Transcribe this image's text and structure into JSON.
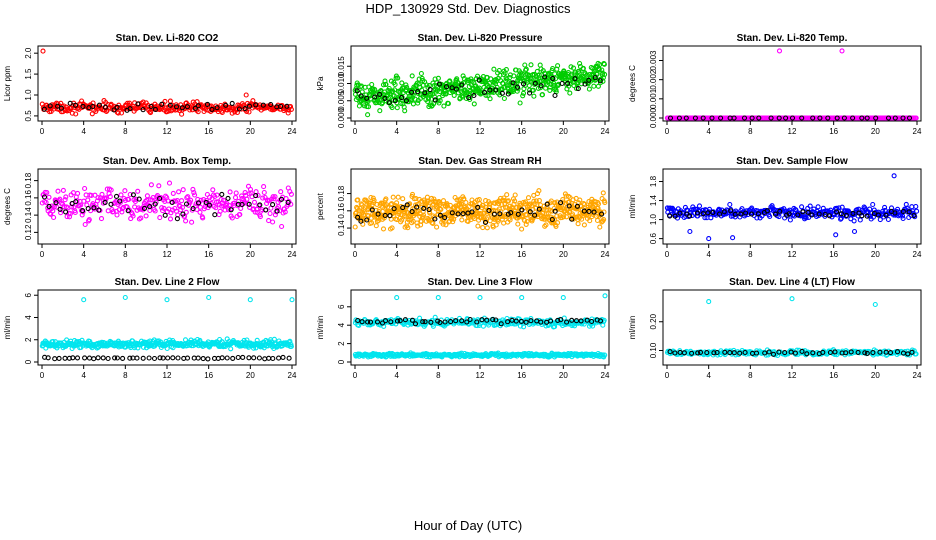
{
  "figure": {
    "title": "HDP_130929  Std. Dev. Diagnostics",
    "xlabel": "Hour of Day (UTC)"
  },
  "chart_data": [
    {
      "type": "scatter",
      "title": "Stan. Dev. Li-820 CO2",
      "ylabel": "Licor ppm",
      "xlim": [
        0,
        24
      ],
      "ylim": [
        0.45,
        2.1
      ],
      "xticks": [
        "0",
        "4",
        "8",
        "12",
        "16",
        "20",
        "24"
      ],
      "yticks": [
        {
          "v": 0.5,
          "label": "0.5"
        },
        {
          "v": 1.0,
          "label": "1.0"
        },
        {
          "v": 1.5,
          "label": "1.5"
        },
        {
          "v": 2.0,
          "label": "2.0"
        }
      ],
      "series": [
        {
          "color": "#ff0000",
          "pattern": {
            "n": 300,
            "base": 0.7,
            "spread": 0.18
          },
          "outliers": [
            {
              "x": 0.1,
              "y": 2.05
            },
            {
              "x": 19.6,
              "y": 1.0
            }
          ]
        },
        {
          "color": "#000000",
          "pattern": {
            "n": 40,
            "base": 0.72,
            "spread": 0.12
          }
        }
      ]
    },
    {
      "type": "scatter",
      "title": "Stan. Dev. Li-820 Pressure",
      "ylabel": "kPa",
      "xlim": [
        0,
        24
      ],
      "ylim": [
        0.0,
        0.02
      ],
      "xticks": [
        "0",
        "4",
        "8",
        "12",
        "16",
        "20",
        "24"
      ],
      "yticks": [
        {
          "v": 0.0,
          "label": "0.000"
        },
        {
          "v": 0.005,
          "label": "0.005"
        },
        {
          "v": 0.01,
          "label": "0.010"
        },
        {
          "v": 0.015,
          "label": "0.015"
        }
      ],
      "series": [
        {
          "color": "#00cc00",
          "pattern": {
            "n": 600,
            "base": 0.006,
            "spread": 0.006,
            "trend": 0.00026
          }
        },
        {
          "color": "#000000",
          "pattern": {
            "n": 45,
            "base": 0.005,
            "spread": 0.004,
            "trend": 0.00025
          }
        }
      ]
    },
    {
      "type": "scatter",
      "title": "Stan. Dev. Li-820 Temp.",
      "ylabel": "degrees C",
      "xlim": [
        0,
        24
      ],
      "ylim": [
        0.0,
        0.0036
      ],
      "xticks": [
        "0",
        "4",
        "8",
        "12",
        "16",
        "20",
        "24"
      ],
      "yticks": [
        {
          "v": 0.0,
          "label": "0.000"
        },
        {
          "v": 0.001,
          "label": "0.001"
        },
        {
          "v": 0.002,
          "label": "0.002"
        },
        {
          "v": 0.003,
          "label": "0.003"
        }
      ],
      "series": [
        {
          "color": "#ff00ff",
          "pattern": {
            "n": 240,
            "base": 0.0,
            "spread": 0.0
          },
          "outliers": [
            {
              "x": 10.8,
              "y": 0.0035
            },
            {
              "x": 16.8,
              "y": 0.0035
            }
          ]
        },
        {
          "color": "#000000",
          "pattern": {
            "n": 30,
            "base": 0.0,
            "spread": 0.0
          }
        }
      ]
    },
    {
      "type": "scatter",
      "title": "Stan. Dev. Amb. Box Temp.",
      "ylabel": "degrees C",
      "xlim": [
        0,
        24
      ],
      "ylim": [
        0.11,
        0.19
      ],
      "xticks": [
        "0",
        "4",
        "8",
        "12",
        "16",
        "20",
        "24"
      ],
      "yticks": [
        {
          "v": 0.12,
          "label": "0.12"
        },
        {
          "v": 0.14,
          "label": "0.14"
        },
        {
          "v": 0.16,
          "label": "0.16"
        },
        {
          "v": 0.18,
          "label": "0.18"
        }
      ],
      "series": [
        {
          "color": "#ff00ff",
          "pattern": {
            "n": 330,
            "base": 0.152,
            "spread": 0.028
          }
        },
        {
          "color": "#000000",
          "pattern": {
            "n": 45,
            "base": 0.152,
            "spread": 0.02
          }
        }
      ]
    },
    {
      "type": "scatter",
      "title": "Stan. Dev. Gas Stream RH",
      "ylabel": "percent",
      "xlim": [
        0,
        24
      ],
      "ylim": [
        0.125,
        0.205
      ],
      "xticks": [
        "0",
        "4",
        "8",
        "12",
        "16",
        "20",
        "24"
      ],
      "yticks": [
        {
          "v": 0.14,
          "label": "0.14"
        },
        {
          "v": 0.16,
          "label": "0.16"
        },
        {
          "v": 0.18,
          "label": "0.18"
        }
      ],
      "series": [
        {
          "color": "#ffa500",
          "pattern": {
            "n": 650,
            "base": 0.16,
            "spread": 0.026
          }
        },
        {
          "color": "#000000",
          "pattern": {
            "n": 45,
            "base": 0.158,
            "spread": 0.016
          }
        }
      ]
    },
    {
      "type": "scatter",
      "title": "Stan. Dev. Sample Flow",
      "ylabel": "ml/min",
      "xlim": [
        0,
        24
      ],
      "ylim": [
        0.55,
        2.0
      ],
      "xticks": [
        "0",
        "4",
        "8",
        "12",
        "16",
        "20",
        "24"
      ],
      "yticks": [
        {
          "v": 0.6,
          "label": "0.6"
        },
        {
          "v": 1.0,
          "label": "1.0"
        },
        {
          "v": 1.4,
          "label": "1.4"
        },
        {
          "v": 1.8,
          "label": "1.8"
        }
      ],
      "series": [
        {
          "color": "#0000ff",
          "pattern": {
            "n": 320,
            "base": 1.15,
            "spread": 0.2
          },
          "outliers": [
            {
              "x": 4.0,
              "y": 0.6
            },
            {
              "x": 6.3,
              "y": 0.62
            },
            {
              "x": 16.2,
              "y": 0.68
            },
            {
              "x": 21.8,
              "y": 1.92
            },
            {
              "x": 2.2,
              "y": 0.75
            },
            {
              "x": 18.0,
              "y": 0.75
            }
          ]
        },
        {
          "color": "#000000",
          "pattern": {
            "n": 45,
            "base": 1.12,
            "spread": 0.1
          }
        }
      ]
    },
    {
      "type": "scatter",
      "title": "Stan. Dev. Line 2 Flow",
      "ylabel": "ml/min",
      "xlim": [
        0,
        24
      ],
      "ylim": [
        0.0,
        6.2
      ],
      "xticks": [
        "0",
        "4",
        "8",
        "12",
        "16",
        "20",
        "24"
      ],
      "yticks": [
        {
          "v": 0,
          "label": "0"
        },
        {
          "v": 2,
          "label": "2"
        },
        {
          "v": 4,
          "label": "4"
        },
        {
          "v": 6,
          "label": "6"
        }
      ],
      "series": [
        {
          "color": "#00e5ee",
          "pattern": {
            "n": 420,
            "base": 1.6,
            "spread": 0.5
          },
          "outliers": [
            {
              "x": 4.0,
              "y": 5.6
            },
            {
              "x": 8.0,
              "y": 5.8
            },
            {
              "x": 12.0,
              "y": 5.6
            },
            {
              "x": 16.0,
              "y": 5.8
            },
            {
              "x": 20.0,
              "y": 5.6
            },
            {
              "x": 24.0,
              "y": 5.6
            }
          ]
        },
        {
          "color": "#000000",
          "pattern": {
            "n": 50,
            "base": 0.35,
            "spread": 0.1
          }
        }
      ]
    },
    {
      "type": "scatter",
      "title": "Stan. Dev. Line 3 Flow",
      "ylabel": "ml/min",
      "xlim": [
        0,
        24
      ],
      "ylim": [
        0.0,
        7.5
      ],
      "xticks": [
        "0",
        "4",
        "8",
        "12",
        "16",
        "20",
        "24"
      ],
      "yticks": [
        {
          "v": 0,
          "label": "0"
        },
        {
          "v": 2,
          "label": "2"
        },
        {
          "v": 4,
          "label": "4"
        },
        {
          "v": 6,
          "label": "6"
        }
      ],
      "series": [
        {
          "color": "#00e5ee",
          "pattern": {
            "n": 360,
            "base": 0.75,
            "spread": 0.3
          }
        },
        {
          "color": "#00e5ee",
          "pattern": {
            "n": 300,
            "base": 4.3,
            "spread": 0.6
          },
          "outliers": [
            {
              "x": 4.0,
              "y": 7.0
            },
            {
              "x": 8.0,
              "y": 7.0
            },
            {
              "x": 12.0,
              "y": 7.0
            },
            {
              "x": 16.0,
              "y": 7.0
            },
            {
              "x": 20.0,
              "y": 7.0
            },
            {
              "x": 24.0,
              "y": 7.2
            }
          ]
        },
        {
          "color": "#000000",
          "pattern": {
            "n": 50,
            "base": 4.4,
            "spread": 0.35
          }
        }
      ]
    },
    {
      "type": "scatter",
      "title": "Stan. Dev. Line 4 (LT) Flow",
      "ylabel": "ml/min",
      "xlim": [
        0,
        24
      ],
      "ylim": [
        0.06,
        0.3
      ],
      "xticks": [
        "0",
        "4",
        "8",
        "12",
        "16",
        "20",
        "24"
      ],
      "yticks": [
        {
          "v": 0.1,
          "label": "0.10"
        },
        {
          "v": 0.2,
          "label": "0.20"
        }
      ],
      "series": [
        {
          "color": "#00e5ee",
          "pattern": {
            "n": 260,
            "base": 0.092,
            "spread": 0.012
          },
          "outliers": [
            {
              "x": 4.0,
              "y": 0.27
            },
            {
              "x": 12.0,
              "y": 0.28
            },
            {
              "x": 20.0,
              "y": 0.26
            }
          ]
        },
        {
          "color": "#000000",
          "pattern": {
            "n": 45,
            "base": 0.092,
            "spread": 0.008
          }
        }
      ]
    }
  ]
}
